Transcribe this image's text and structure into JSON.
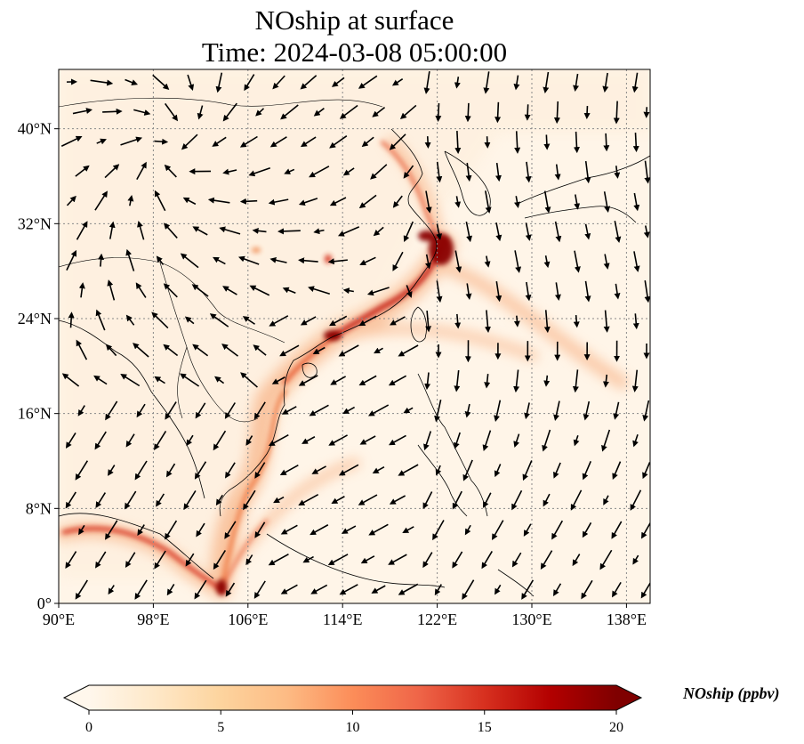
{
  "title_line1": "NOship at surface",
  "title_line2": "Time: 2024-03-08 05:00:00",
  "colorbar": {
    "label": "NOship (ppbv)",
    "ticks": [
      "0",
      "5",
      "10",
      "15",
      "20"
    ],
    "tick_values": [
      0,
      5,
      10,
      15,
      20
    ],
    "vmin": 0,
    "vmax": 20,
    "extend": "both",
    "colormap": "OrRd",
    "stops": [
      "#fff7ec",
      "#fee8c8",
      "#fdd49e",
      "#fdbb84",
      "#fc8d59",
      "#ef6548",
      "#d7301f",
      "#b30000",
      "#7f0000"
    ]
  },
  "map": {
    "lon_range": [
      90,
      140
    ],
    "lat_range": [
      0,
      45
    ],
    "x_ticks": [
      "90°E",
      "98°E",
      "106°E",
      "114°E",
      "122°E",
      "130°E",
      "138°E"
    ],
    "x_tick_values": [
      90,
      98,
      106,
      114,
      122,
      130,
      138
    ],
    "y_ticks": [
      "0°",
      "8°N",
      "16°N",
      "24°N",
      "32°N",
      "40°N"
    ],
    "y_tick_values": [
      0,
      8,
      16,
      24,
      32,
      40
    ],
    "gridlines": true,
    "features": [
      "coastlines",
      "country borders",
      "wind vectors"
    ],
    "background_color": "#fff5e8",
    "plume_color": "#b01010"
  }
}
